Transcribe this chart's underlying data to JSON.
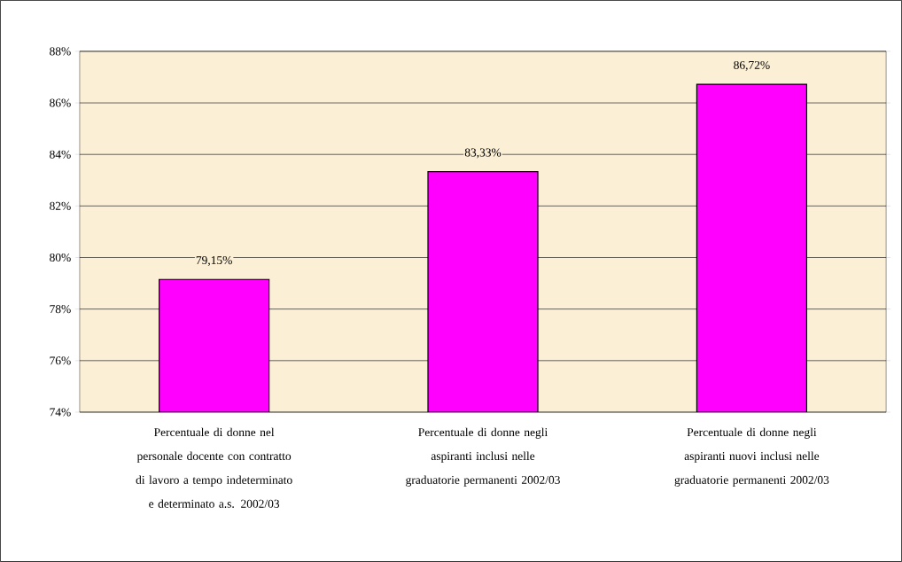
{
  "chart_data": {
    "type": "bar",
    "categories": [
      "Percentuale di donne nel personale docente con contratto di lavoro a tempo indeterminato e determinato a.s. 2002/03",
      "Percentuale di donne negli aspiranti inclusi nelle graduatorie permanenti 2002/03",
      "Percentuale di donne negli aspiranti nuovi inclusi nelle graduatorie permanenti 2002/03"
    ],
    "values": [
      79.15,
      83.33,
      86.72
    ],
    "value_labels": [
      "79,15%",
      "83,33%",
      "86,72%"
    ],
    "color": "#ff00ff",
    "ylim": [
      74,
      88
    ],
    "yticks": [
      {
        "value": 74,
        "label": "74%"
      },
      {
        "value": 76,
        "label": "76%"
      },
      {
        "value": 78,
        "label": "78%"
      },
      {
        "value": 80,
        "label": "80%"
      },
      {
        "value": 82,
        "label": "82%"
      },
      {
        "value": 84,
        "label": "84%"
      },
      {
        "value": 86,
        "label": "86%"
      },
      {
        "value": 88,
        "label": "88%"
      }
    ],
    "grid": "y"
  }
}
